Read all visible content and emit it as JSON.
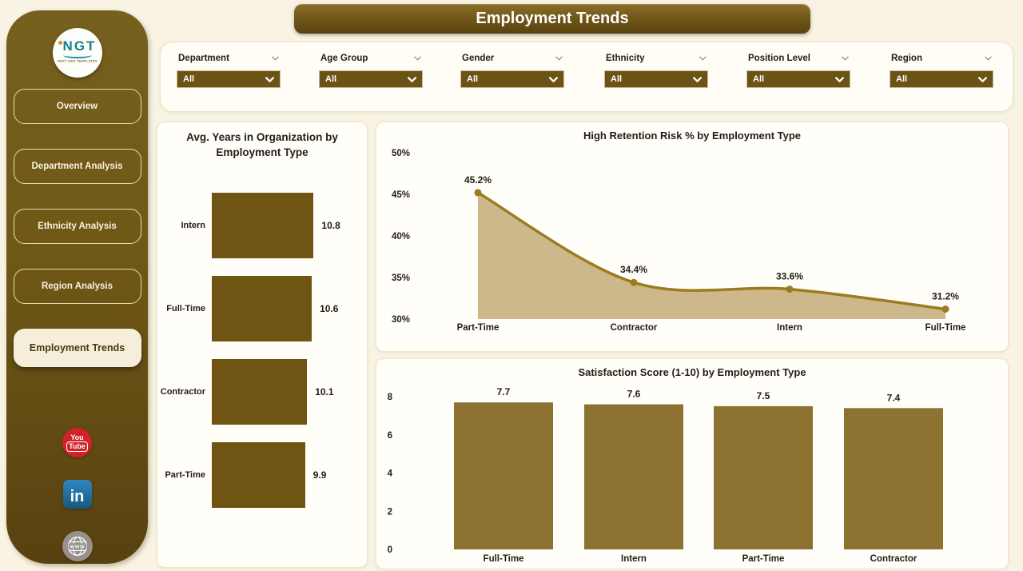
{
  "header": {
    "title": "Employment Trends"
  },
  "sidebar": {
    "logo": {
      "text": "NGT",
      "subtext": "NEXT GEN TEMPLATES"
    },
    "items": [
      {
        "label": "Overview",
        "active": false
      },
      {
        "label": "Department Analysis",
        "active": false
      },
      {
        "label": "Ethnicity Analysis",
        "active": false
      },
      {
        "label": "Region Analysis",
        "active": false
      },
      {
        "label": "Employment Trends",
        "active": true
      }
    ],
    "social": {
      "youtube": [
        "You",
        "Tube"
      ],
      "linkedin": "in",
      "website": "WWW"
    }
  },
  "filters": [
    {
      "label": "Department",
      "value": "All"
    },
    {
      "label": "Age Group",
      "value": "All"
    },
    {
      "label": "Gender",
      "value": "All"
    },
    {
      "label": "Ethnicity",
      "value": "All"
    },
    {
      "label": "Position Level",
      "value": "All"
    },
    {
      "label": "Region",
      "value": "All"
    }
  ],
  "colors": {
    "sidebar_top": "#76601f",
    "sidebar_bottom": "#584110",
    "banner": "#6d5317",
    "bar_dark": "#6f5413",
    "bar_gold": "#8e7231",
    "line": "#9c7c20",
    "area_fill": "#ccb88a",
    "select_bg": "#6b5315",
    "card_bg": "#fffef8",
    "page_bg": "#f8f3e3"
  },
  "chart_data": [
    {
      "type": "bar",
      "orientation": "horizontal",
      "title": "Avg. Years in Organization by Employment Type",
      "categories": [
        "Intern",
        "Full-Time",
        "Contractor",
        "Part-Time"
      ],
      "values": [
        10.8,
        10.6,
        10.1,
        9.9
      ],
      "value_labels": [
        "10.8",
        "10.6",
        "10.1",
        "9.9"
      ],
      "xlim": [
        0,
        11
      ],
      "grid": false,
      "legend": false
    },
    {
      "type": "area",
      "title": "High Retention Risk % by Employment Type",
      "categories": [
        "Part-Time",
        "Contractor",
        "Intern",
        "Full-Time"
      ],
      "values": [
        45.2,
        34.4,
        33.6,
        31.2
      ],
      "value_labels": [
        "45.2%",
        "34.4%",
        "33.6%",
        "31.2%"
      ],
      "ylim": [
        30,
        50
      ],
      "yticks": [
        50,
        45,
        40,
        35,
        30
      ],
      "ytick_suffix": "%",
      "grid": false,
      "legend": false
    },
    {
      "type": "bar",
      "title": "Satisfaction Score (1-10) by Employment Type",
      "categories": [
        "Full-Time",
        "Intern",
        "Part-Time",
        "Contractor"
      ],
      "values": [
        7.7,
        7.6,
        7.5,
        7.4
      ],
      "value_labels": [
        "7.7",
        "7.6",
        "7.5",
        "7.4"
      ],
      "ylim": [
        0,
        8
      ],
      "yticks": [
        8,
        6,
        4,
        2,
        0
      ],
      "grid": false,
      "legend": false
    }
  ]
}
